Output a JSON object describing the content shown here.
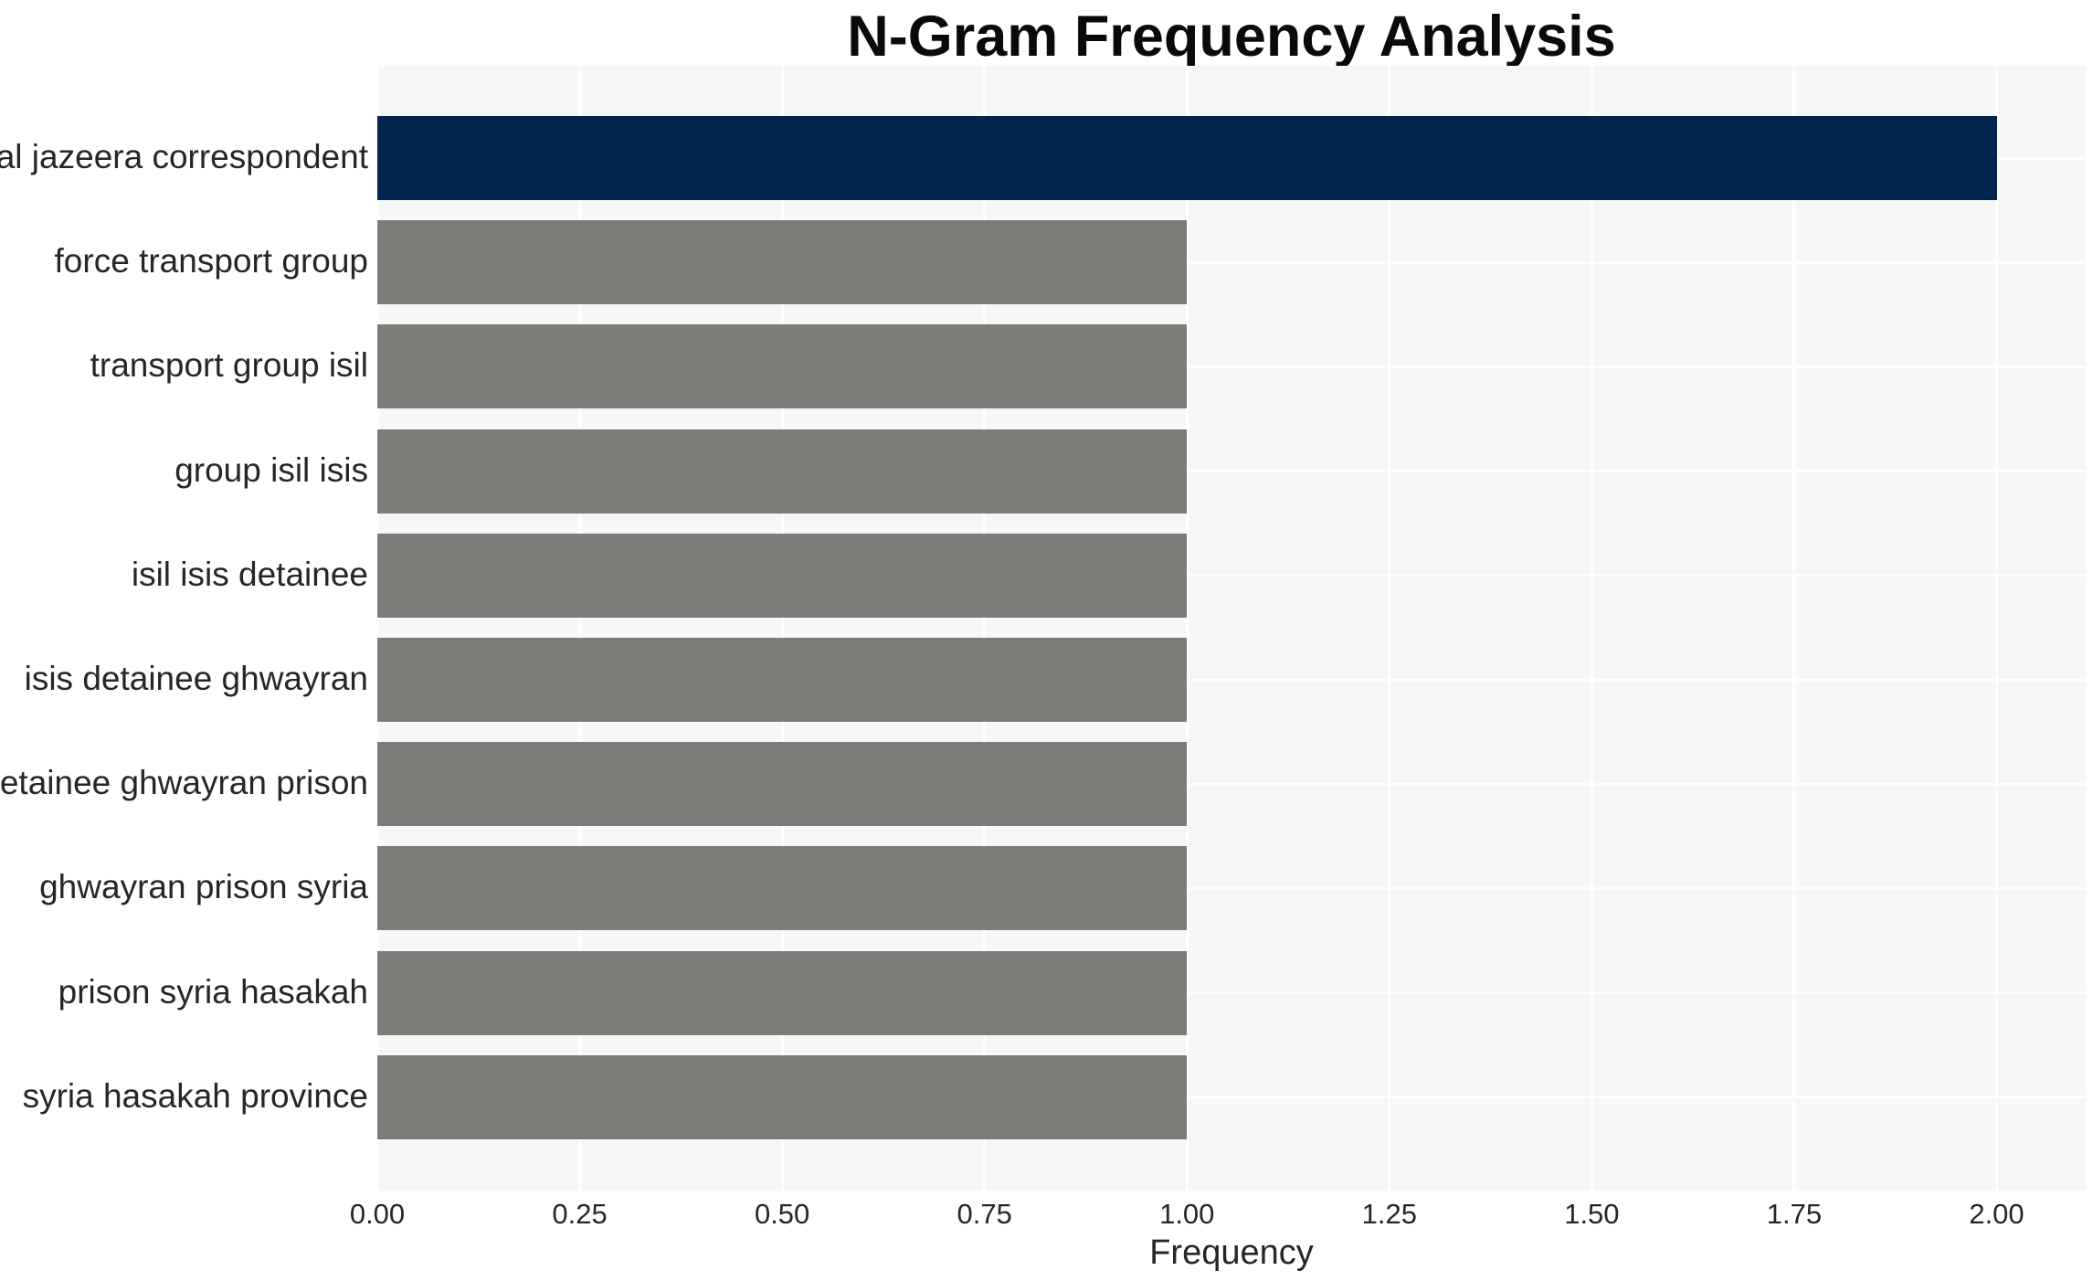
{
  "chart_data": {
    "type": "bar",
    "orientation": "horizontal",
    "title": "N-Gram Frequency Analysis",
    "xlabel": "Frequency",
    "ylabel": "",
    "categories": [
      "al jazeera correspondent",
      "force transport group",
      "transport group isil",
      "group isil isis",
      "isil isis detainee",
      "isis detainee ghwayran",
      "detainee ghwayran prison",
      "ghwayran prison syria",
      "prison syria hasakah",
      "syria hasakah province"
    ],
    "values": [
      2,
      1,
      1,
      1,
      1,
      1,
      1,
      1,
      1,
      1
    ],
    "bar_colors": [
      "#02254e",
      "#7b7b77",
      "#7b7b77",
      "#7b7b77",
      "#7b7b77",
      "#7b7b77",
      "#7b7b77",
      "#7b7b77",
      "#7b7b77",
      "#7b7b77"
    ],
    "xticks": {
      "values": [
        0,
        0.25,
        0.5,
        0.75,
        1.0,
        1.25,
        1.5,
        1.75,
        2.0
      ],
      "labels": [
        "0.00",
        "0.25",
        "0.50",
        "0.75",
        "1.00",
        "1.25",
        "1.50",
        "1.75",
        "2.00"
      ]
    },
    "xlim": [
      0,
      2.11
    ],
    "grid": true,
    "legend": false,
    "colors": {
      "highlight_bar": "#02254e",
      "default_bar": "#7b7b77",
      "plot_background": "#f7f7f7",
      "grid_line": "#ffffff",
      "tick_text": "#262626",
      "title_text": "#0a0a0a"
    }
  }
}
